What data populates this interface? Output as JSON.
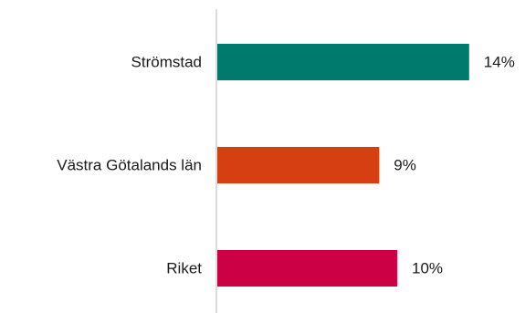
{
  "chart_data": {
    "type": "bar",
    "orientation": "horizontal",
    "title": "",
    "xlabel": "",
    "ylabel": "",
    "categories": [
      "Strömstad",
      "Västra Götalands län",
      "Riket"
    ],
    "values": [
      14,
      9,
      10
    ],
    "value_labels": [
      "14%",
      "9%",
      "10%"
    ],
    "bar_colors": [
      "#007A6C",
      "#D63F11",
      "#CC0044"
    ],
    "unit": "%",
    "xlim": [
      0,
      20
    ],
    "grid": false,
    "legend": "none"
  }
}
